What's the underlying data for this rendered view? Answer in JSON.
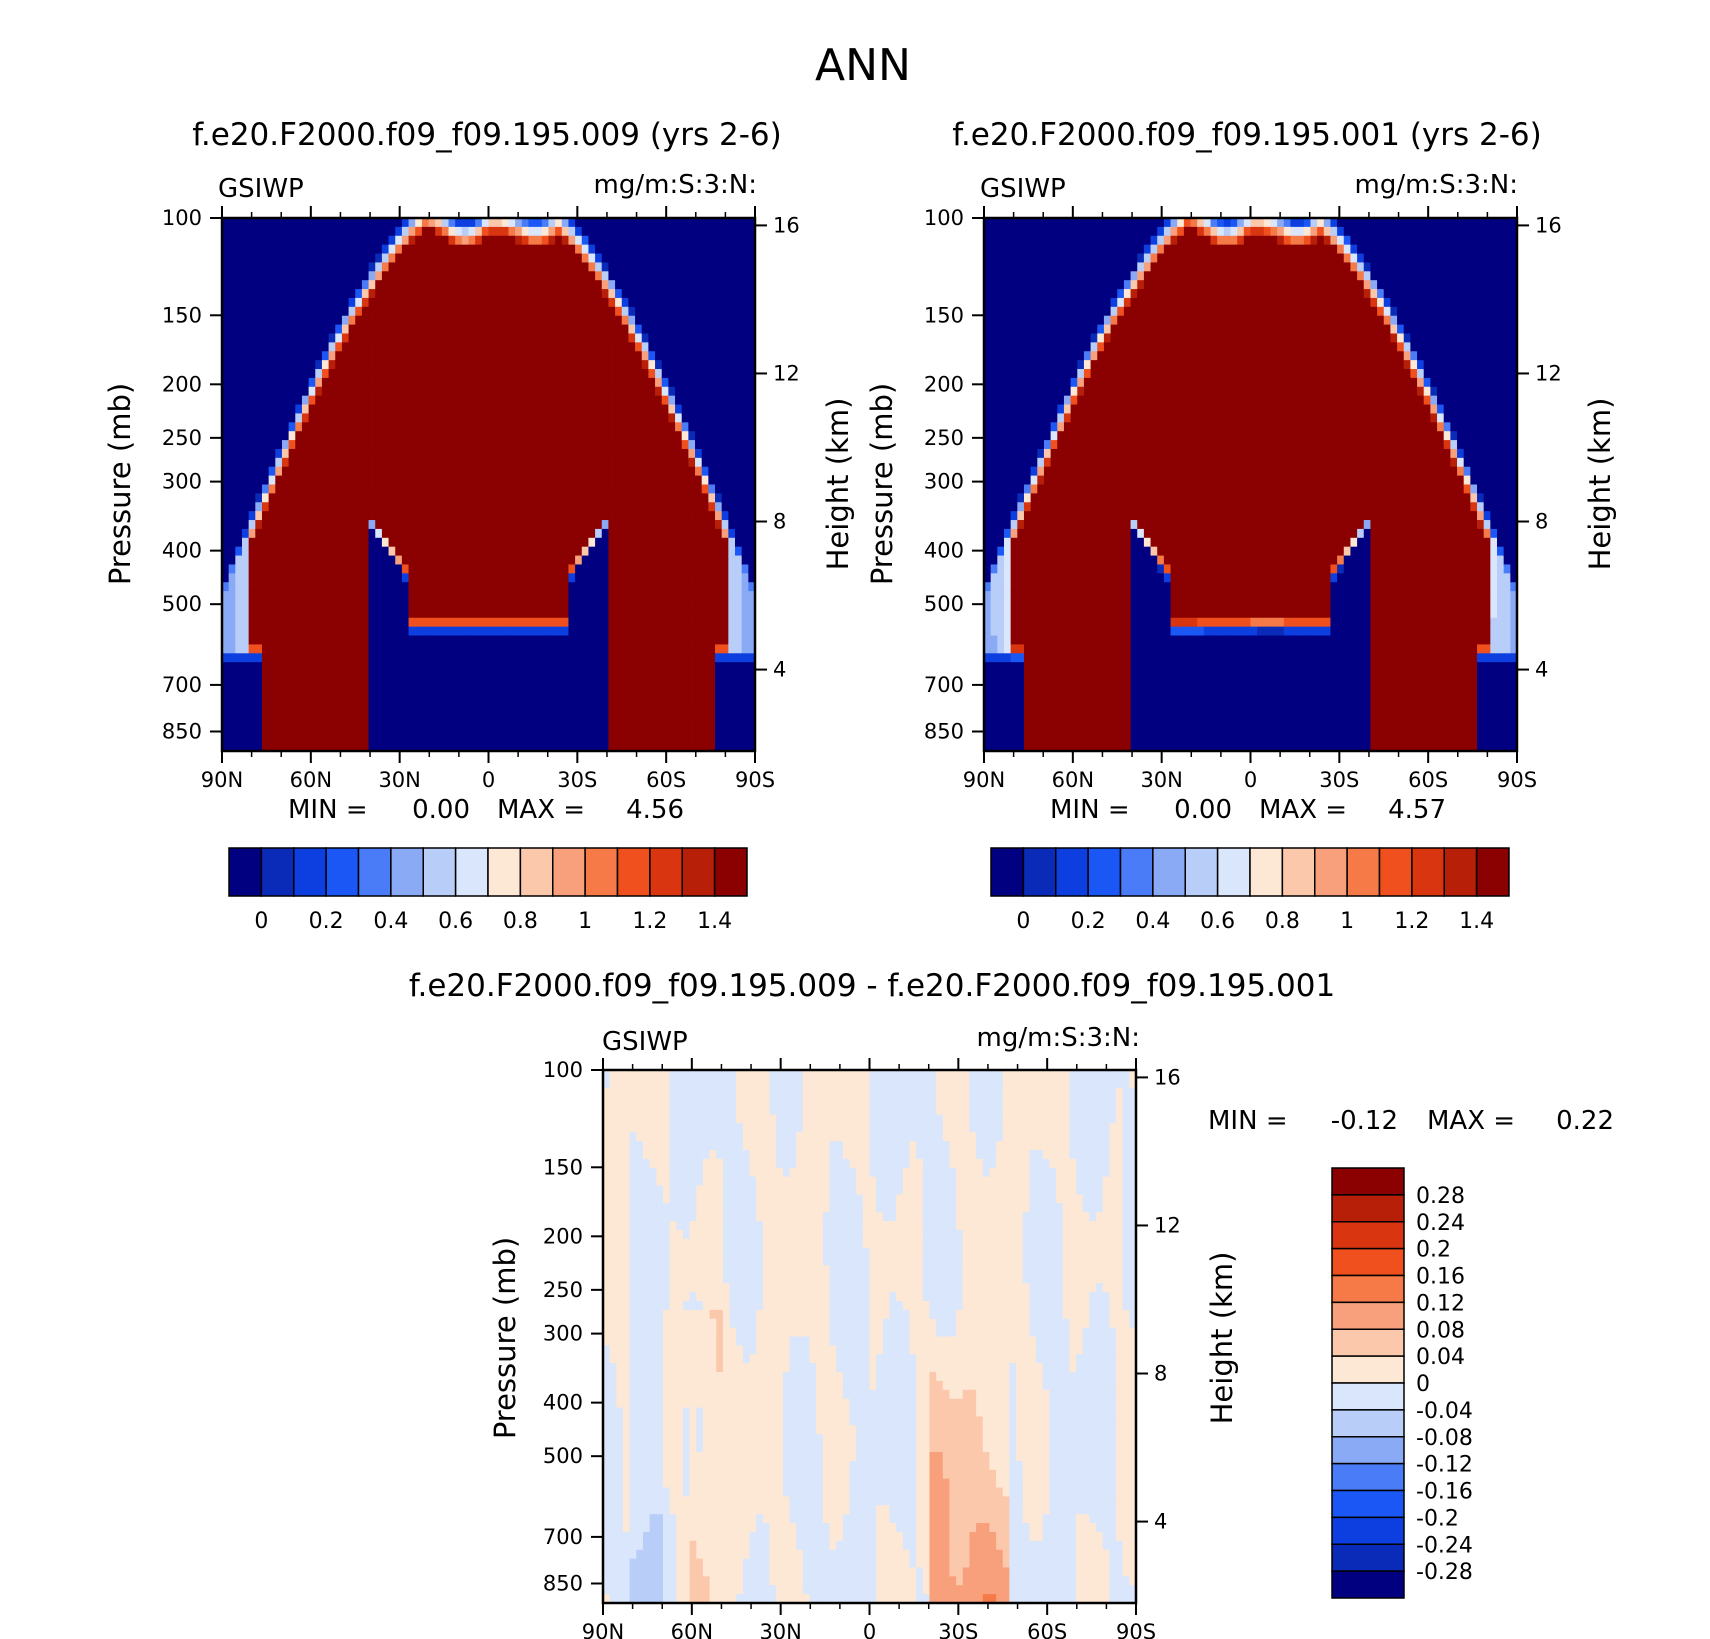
{
  "title": "ANN",
  "colors": {
    "main_scale": [
      "#000080",
      "#0a2ab8",
      "#0d3fe0",
      "#1a57f5",
      "#4a7cf7",
      "#8aaaf5",
      "#b8cdf8",
      "#d9e6fb",
      "#fde8d6",
      "#fbc8ac",
      "#f8a07b",
      "#f57a48",
      "#f0501e",
      "#d93510",
      "#b81f08",
      "#8b0000"
    ],
    "diff_scale": [
      "#000080",
      "#0a2ab8",
      "#0d3fe0",
      "#1a57f5",
      "#4a7cf7",
      "#8aaaf5",
      "#b8cdf8",
      "#d9e6fb",
      "#fde8d6",
      "#fbc8ac",
      "#f8a07b",
      "#f57a48",
      "#f0501e",
      "#d93510",
      "#b81f08",
      "#8b0000"
    ]
  },
  "chart_data": [
    {
      "type": "heatmap",
      "title": "f.e20.F2000.f09_f09.195.009 (yrs 2-6)",
      "variable": "GSIWP",
      "units": "mg/m:S:3:N:",
      "ylabel": "Pressure (mb)",
      "y2label": "Height (km)",
      "x_ticks": [
        "90N",
        "60N",
        "30N",
        "0",
        "30S",
        "60S",
        "90S"
      ],
      "y_ticks": [
        "100",
        "150",
        "200",
        "250",
        "300",
        "400",
        "500",
        "700",
        "850"
      ],
      "y2_ticks": [
        "16",
        "12",
        "8",
        "4"
      ],
      "min_label": "MIN =",
      "min_value": "0.00",
      "max_label": "MAX =",
      "max_value": "4.56",
      "colorbar_labels": [
        "0",
        "0.2",
        "0.4",
        "0.6",
        "0.8",
        "1",
        "1.2",
        "1.4"
      ]
    },
    {
      "type": "heatmap",
      "title": "f.e20.F2000.f09_f09.195.001 (yrs 2-6)",
      "variable": "GSIWP",
      "units": "mg/m:S:3:N:",
      "ylabel": "Pressure (mb)",
      "y2label": "Height (km)",
      "x_ticks": [
        "90N",
        "60N",
        "30N",
        "0",
        "30S",
        "60S",
        "90S"
      ],
      "y_ticks": [
        "100",
        "150",
        "200",
        "250",
        "300",
        "400",
        "500",
        "700",
        "850"
      ],
      "y2_ticks": [
        "16",
        "12",
        "8",
        "4"
      ],
      "min_label": "MIN =",
      "min_value": "0.00",
      "max_label": "MAX =",
      "max_value": "4.57",
      "colorbar_labels": [
        "0",
        "0.2",
        "0.4",
        "0.6",
        "0.8",
        "1",
        "1.2",
        "1.4"
      ]
    },
    {
      "type": "heatmap",
      "title": "f.e20.F2000.f09_f09.195.009 - f.e20.F2000.f09_f09.195.001",
      "variable": "GSIWP",
      "units": "mg/m:S:3:N:",
      "ylabel": "Pressure (mb)",
      "y2label": "Height (km)",
      "x_ticks": [
        "90N",
        "60N",
        "30N",
        "0",
        "30S",
        "60S",
        "90S"
      ],
      "y_ticks": [
        "100",
        "150",
        "200",
        "250",
        "300",
        "400",
        "500",
        "700",
        "850"
      ],
      "y2_ticks": [
        "16",
        "12",
        "8",
        "4"
      ],
      "min_label": "MIN =",
      "min_value": "-0.12",
      "max_label": "MAX =",
      "max_value": "0.22",
      "colorbar_labels": [
        "0.28",
        "0.24",
        "0.2",
        "0.16",
        "0.12",
        "0.08",
        "0.04",
        "0",
        "-0.04",
        "-0.08",
        "-0.12",
        "-0.16",
        "-0.2",
        "-0.24",
        "-0.28"
      ]
    }
  ]
}
